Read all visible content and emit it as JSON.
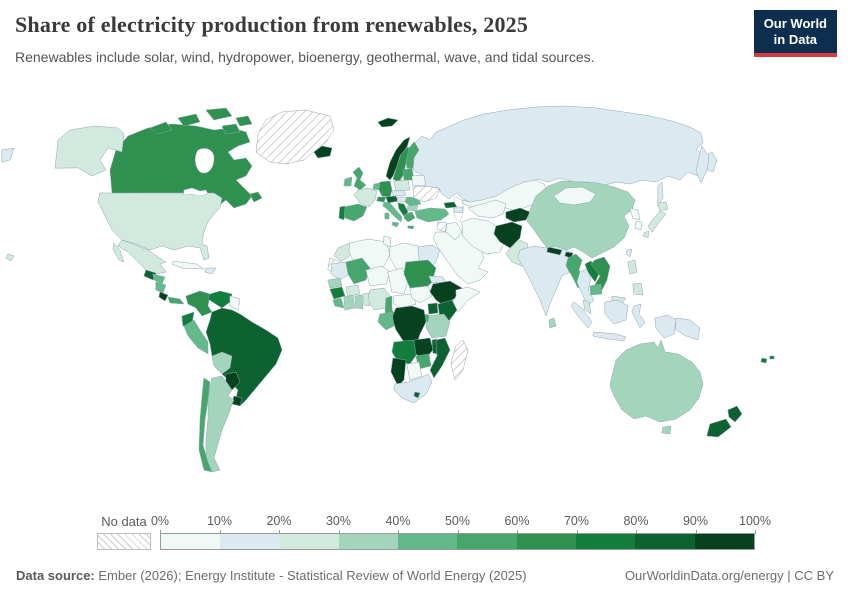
{
  "header": {
    "title": "Share of electricity production from renewables, 2025",
    "subtitle": "Renewables include solar, wind, hydropower, bioenergy, geothermal, wave, and tidal sources."
  },
  "logo": {
    "line1": "Our World",
    "line2": "in Data",
    "bg_color": "#0d2e4e",
    "accent_color": "#d93940"
  },
  "footer": {
    "source_label": "Data source:",
    "source_text": "Ember (2026); Energy Institute - Statistical Review of World Energy (2025)",
    "credit": "OurWorldinData.org/energy | CC BY"
  },
  "chart_data": {
    "type": "choropleth",
    "title": "Share of electricity production from renewables, 2025",
    "subtitle": "Renewables include solar, wind, hydropower, bioenergy, geothermal, wave, and tidal sources.",
    "unit": "%",
    "legend_position": "bottom",
    "bin_edges": [
      "0%",
      "10%",
      "20%",
      "30%",
      "40%",
      "50%",
      "60%",
      "70%",
      "80%",
      "90%",
      "100%"
    ],
    "bin_colors": [
      "#f0f9f5",
      "#dbeaf1",
      "#d1eadd",
      "#a3d5bc",
      "#63b98a",
      "#47a66c",
      "#2e9150",
      "#137e3c",
      "#0c6330",
      "#06421e"
    ],
    "no_data": {
      "label": "No data",
      "style": "hatched"
    },
    "regions": {
      "canada": "60-70%",
      "united-states": "20-30%",
      "greenland": "No data",
      "mexico": "20-30%",
      "guatemala": "80-90%",
      "honduras": "40-50%",
      "nicaragua": "40-50%",
      "costa-rica": "90-100%",
      "panama": "50-60%",
      "cuba": "0-10%",
      "haiti-dominican-republic": "10-20%",
      "colombia": "60-70%",
      "venezuela": "70-80%",
      "guyana-suriname": "0-10%",
      "ecuador": "70-80%",
      "peru": "40-50%",
      "brazil": "80-90%",
      "bolivia": "30-40%",
      "paraguay": "90-100%",
      "uruguay": "90-100%",
      "argentina": "30-40%",
      "chile": "50-60%",
      "iceland": "90-100%",
      "norway": "90-100%",
      "sweden": "60-70%",
      "finland": "50-60%",
      "denmark": "80-90%",
      "united-kingdom": "50-60%",
      "ireland": "40-50%",
      "france": "20-30%",
      "spain": "50-60%",
      "portugal": "70-80%",
      "germany": "60-70%",
      "belgium-netherlands": "40-50%",
      "switzerland": "60-70%",
      "austria": "80-90%",
      "czechia-slovakia": "10-20%",
      "poland": "20-30%",
      "italy": "40-50%",
      "hungary": "10-20%",
      "croatia-bosnia-albania": "70-80%",
      "greece": "50-60%",
      "romania": "40-50%",
      "bulgaria": "30-40%",
      "baltic-states": "50-60%",
      "belarus": "0-10%",
      "ukraine": "No data",
      "russia": "10-20%",
      "kazakhstan": "0-10%",
      "georgia": "80-90%",
      "azerbaijan": "10-20%",
      "turkey": "40-50%",
      "syria": "No data",
      "iraq": "0-10%",
      "saudi-arabia-gulf": "0-10%",
      "iran": "0-10%",
      "turkmenistan-uzbekistan": "0-10%",
      "kyrgyzstan-tajikistan": "90-100%",
      "afghanistan": "90-100%",
      "pakistan": "20-30%",
      "india": "10-20%",
      "nepal": "90-100%",
      "bhutan": "90-100%",
      "bangladesh": "0-10%",
      "sri-lanka": "30-40%",
      "china": "30-40%",
      "mongolia": "0-10%",
      "north-korea": "0-10%",
      "south-korea": "0-10%",
      "japan": "20-30%",
      "taiwan": "10-20%",
      "myanmar": "50-60%",
      "thailand": "10-20%",
      "laos": "70-80%",
      "vietnam": "60-70%",
      "cambodia": "40-50%",
      "malaysia": "20-30%",
      "indonesia": "10-20%",
      "papua-new-guinea": "10-20%",
      "philippines": "20-30%",
      "australia": "30-40%",
      "new-zealand": "80-90%",
      "fiji": "70-80%",
      "morocco": "20-30%",
      "western-sahara": "No data",
      "algeria": "0-10%",
      "tunisia": "0-10%",
      "libya": "0-10%",
      "egypt": "10-20%",
      "mauritania": "10-20%",
      "mali": "50-60%",
      "niger": "0-10%",
      "chad": "0-10%",
      "sudan": "60-70%",
      "senegal": "30-40%",
      "guinea": "70-80%",
      "sierra-leone-liberia": "40-50%",
      "ivory-coast": "30-40%",
      "burkina-faso": "20-30%",
      "ghana": "30-40%",
      "togo-benin": "20-30%",
      "nigeria": "20-30%",
      "cameroon": "50-60%",
      "central-african-republic": "0-10%",
      "south-sudan": "0-10%",
      "eritrea": "10-20%",
      "ethiopia": "90-100%",
      "somalia": "0-10%",
      "kenya": "80-90%",
      "uganda": "80-90%",
      "tanzania": "30-40%",
      "rwanda-burundi": "50-60%",
      "dr-congo": "90-100%",
      "congo-gabon": "40-50%",
      "angola": "70-80%",
      "zambia": "90-100%",
      "malawi": "80-90%",
      "mozambique": "80-90%",
      "zimbabwe": "50-60%",
      "botswana": "0-10%",
      "namibia": "90-100%",
      "south-africa": "10-20%",
      "lesotho": "80-90%",
      "madagascar": "No data"
    }
  }
}
